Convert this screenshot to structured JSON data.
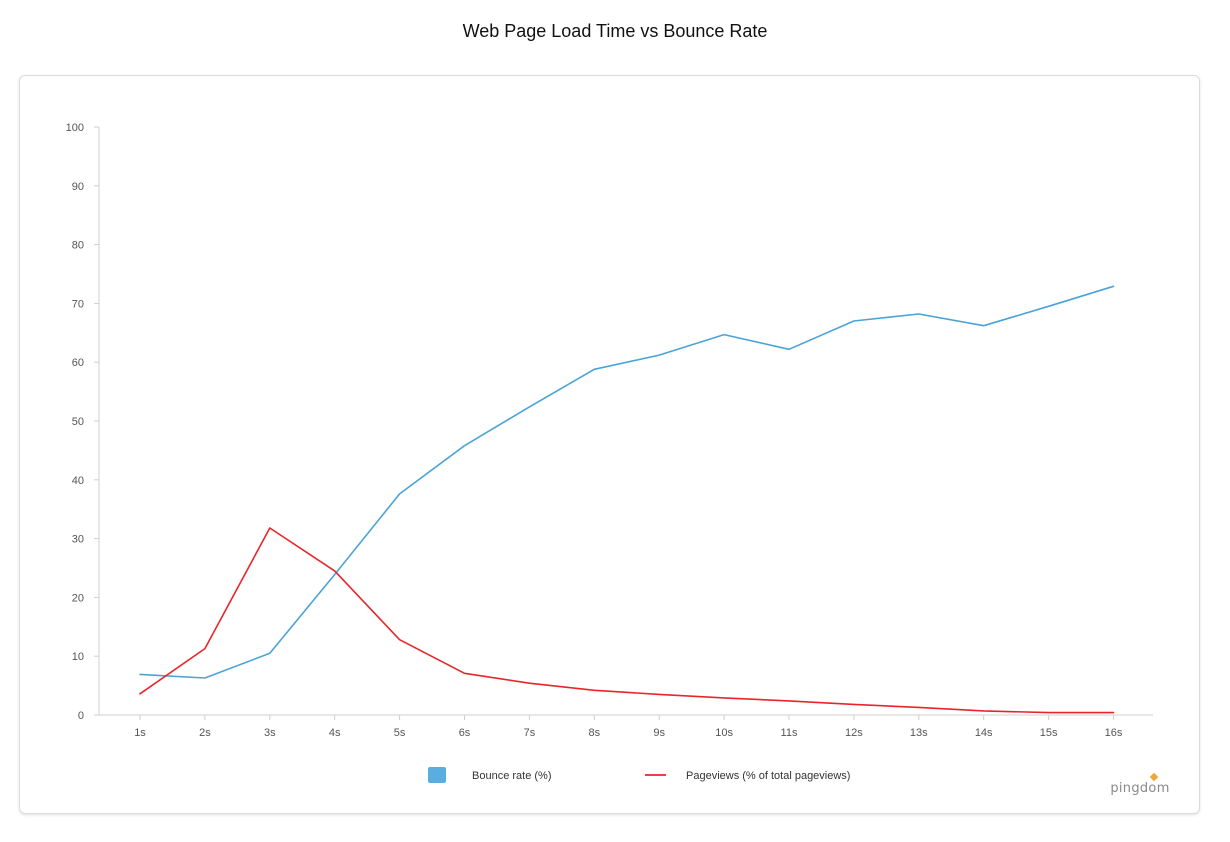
{
  "page": {
    "title": "Web Page Load Time vs Bounce Rate",
    "brand": "pingdom"
  },
  "colors": {
    "bounce": "#4aa3d8",
    "bounce_legend": "#5aaedf",
    "pageviews": "#e8252b",
    "axis": "#cfcfcf"
  },
  "chart_data": {
    "type": "line",
    "title": "Web Page Load Time vs Bounce Rate",
    "xlabel": "",
    "ylabel": "",
    "categories": [
      "1s",
      "2s",
      "3s",
      "4s",
      "5s",
      "6s",
      "7s",
      "8s",
      "9s",
      "10s",
      "11s",
      "12s",
      "13s",
      "14s",
      "15s",
      "16s"
    ],
    "ylim": [
      0,
      100
    ],
    "yticks": [
      0,
      10,
      20,
      30,
      40,
      50,
      60,
      70,
      80,
      90,
      100
    ],
    "grid": false,
    "legend_position": "bottom-center",
    "series": [
      {
        "name": "Bounce rate  (%)",
        "color": "#4aa3d8",
        "values": [
          6.9,
          6.3,
          10.5,
          23.9,
          37.6,
          45.8,
          52.4,
          58.8,
          61.2,
          64.7,
          62.2,
          67.0,
          68.2,
          66.2,
          69.5,
          72.9
        ]
      },
      {
        "name": "Pageviews (% of total pageviews)",
        "color": "#e8252b",
        "values": [
          3.6,
          11.3,
          31.8,
          24.5,
          12.8,
          7.1,
          5.4,
          4.2,
          3.5,
          2.9,
          2.4,
          1.8,
          1.3,
          0.7,
          0.4,
          0.4
        ]
      }
    ]
  }
}
